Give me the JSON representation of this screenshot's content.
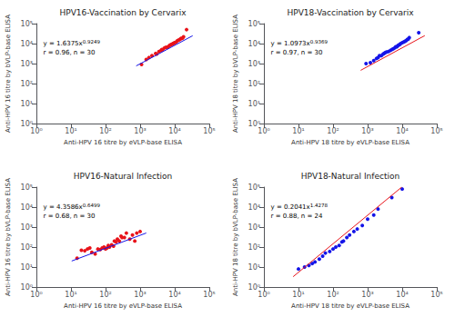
{
  "chart_data": [
    {
      "type": "scatter",
      "title": "HPV16-Vaccination by Cervarix",
      "xlabel": "Anti-HPV 16 titre by eVLP-base ELISA",
      "ylabel": "Anti-HPV 16 titre by bVLP-base ELISA",
      "log": true,
      "grid": false,
      "xlim": [
        1,
        100000
      ],
      "ylim": [
        1,
        100000
      ],
      "xticks": [
        {
          "value": 1,
          "label": "10⁰"
        },
        {
          "value": 10,
          "label": "10¹"
        },
        {
          "value": 100,
          "label": "10²"
        },
        {
          "value": 1000,
          "label": "10³"
        },
        {
          "value": 10000,
          "label": "10⁴"
        },
        {
          "value": 100000,
          "label": "10⁵"
        }
      ],
      "yticks": [
        {
          "value": 1,
          "label": "10⁰"
        },
        {
          "value": 10,
          "label": "10¹"
        },
        {
          "value": 100,
          "label": "10²"
        },
        {
          "value": 1000,
          "label": "10³"
        },
        {
          "value": 10000,
          "label": "10⁴"
        },
        {
          "value": 100000,
          "label": "10⁵"
        }
      ],
      "annotation": {
        "equation": "y = 1.6375x",
        "exponent": "0.9249",
        "stat": "r = 0.96, n = 30"
      },
      "series": [
        {
          "type": "scatter",
          "color": "#e8131a",
          "x": [
            1100,
            1500,
            1800,
            2200,
            2800,
            3000,
            3500,
            4000,
            4200,
            4500,
            5000,
            5500,
            6000,
            6500,
            7000,
            7500,
            8000,
            8500,
            9000,
            9500,
            10000,
            11000,
            12000,
            13000,
            14000,
            15000,
            16000,
            17000,
            18000,
            22000
          ],
          "values": [
            900,
            1600,
            2000,
            2500,
            3200,
            3000,
            4000,
            4500,
            5000,
            5000,
            6000,
            6500,
            6500,
            7000,
            8000,
            8500,
            9000,
            9500,
            10000,
            10500,
            11000,
            12000,
            14000,
            15000,
            16000,
            18000,
            18000,
            19000,
            22000,
            50000
          ]
        },
        {
          "type": "line",
          "color": "#1414e8",
          "x": [
            770,
            33000
          ],
          "values": [
            765.4,
            24737
          ]
        }
      ]
    },
    {
      "type": "scatter",
      "title": "HPV18-Vaccination by Cervarix",
      "xlabel": "Anti-HPV 18 titre by eVLP-base ELISA",
      "ylabel": "Anti-HPV 18 titre by bVLP-base ELISA",
      "log": true,
      "grid": false,
      "xlim": [
        1,
        100000
      ],
      "ylim": [
        1,
        100000
      ],
      "xticks": [
        {
          "value": 1,
          "label": "10⁰"
        },
        {
          "value": 10,
          "label": "10¹"
        },
        {
          "value": 100,
          "label": "10²"
        },
        {
          "value": 1000,
          "label": "10³"
        },
        {
          "value": 10000,
          "label": "10⁴"
        },
        {
          "value": 100000,
          "label": "10⁵"
        }
      ],
      "yticks": [
        {
          "value": 1,
          "label": "10⁰"
        },
        {
          "value": 10,
          "label": "10¹"
        },
        {
          "value": 100,
          "label": "10²"
        },
        {
          "value": 1000,
          "label": "10³"
        },
        {
          "value": 10000,
          "label": "10⁴"
        },
        {
          "value": 100000,
          "label": "10⁵"
        }
      ],
      "annotation": {
        "equation": "y = 1.0973x",
        "exponent": "0.9369",
        "stat": "r = 0.97, n = 30"
      },
      "series": [
        {
          "type": "scatter",
          "color": "#1414e8",
          "x": [
            900,
            1200,
            1500,
            1800,
            2000,
            2200,
            2500,
            2800,
            3000,
            3200,
            3500,
            4000,
            4500,
            5000,
            5500,
            6000,
            6500,
            7000,
            7500,
            8000,
            8500,
            9000,
            10000,
            11000,
            12000,
            13000,
            14000,
            15000,
            16000,
            30000
          ],
          "values": [
            1000,
            1100,
            1400,
            1800,
            2000,
            2500,
            2500,
            3000,
            3200,
            3500,
            3800,
            4000,
            4500,
            5000,
            5500,
            6000,
            7000,
            7000,
            8000,
            8500,
            9000,
            10000,
            11000,
            12000,
            13000,
            14000,
            16000,
            17000,
            20000,
            35000
          ]
        },
        {
          "type": "line",
          "color": "#e8131a",
          "x": [
            630,
            45000
          ],
          "values": [
            460.3,
            25114
          ]
        }
      ]
    },
    {
      "type": "scatter",
      "title": "HPV16-Natural Infection",
      "xlabel": "Anti-HPV 16 titre by eVLP-base ELISA",
      "ylabel": "Anti-HPV 16 titre by bVLP-base ELISA",
      "log": true,
      "grid": false,
      "xlim": [
        1,
        100000
      ],
      "ylim": [
        1,
        100000
      ],
      "xticks": [
        {
          "value": 1,
          "label": "10⁰"
        },
        {
          "value": 10,
          "label": "10¹"
        },
        {
          "value": 100,
          "label": "10²"
        },
        {
          "value": 1000,
          "label": "10³"
        },
        {
          "value": 10000,
          "label": "10⁴"
        },
        {
          "value": 100000,
          "label": "10⁵"
        }
      ],
      "yticks": [
        {
          "value": 1,
          "label": "10⁰"
        },
        {
          "value": 10,
          "label": "10¹"
        },
        {
          "value": 100,
          "label": "10²"
        },
        {
          "value": 1000,
          "label": "10³"
        },
        {
          "value": 10000,
          "label": "10⁴"
        },
        {
          "value": 100000,
          "label": "10⁵"
        }
      ],
      "annotation": {
        "equation": "y = 4.3586x",
        "exponent": "0.6499",
        "stat": "r = 0.68, n = 30"
      },
      "series": [
        {
          "type": "scatter",
          "color": "#e8131a",
          "x": [
            15,
            20,
            25,
            30,
            35,
            40,
            50,
            60,
            70,
            80,
            90,
            100,
            110,
            120,
            130,
            150,
            170,
            180,
            200,
            220,
            250,
            280,
            300,
            350,
            400,
            500,
            600,
            700,
            800,
            1000
          ],
          "values": [
            28,
            70,
            65,
            80,
            90,
            55,
            45,
            80,
            75,
            90,
            100,
            80,
            90,
            120,
            100,
            130,
            110,
            200,
            180,
            250,
            200,
            350,
            300,
            300,
            500,
            250,
            400,
            200,
            500,
            600
          ]
        },
        {
          "type": "line",
          "color": "#1414e8",
          "x": [
            10.5,
            1500
          ],
          "values": [
            20.09,
            505.2
          ]
        }
      ]
    },
    {
      "type": "scatter",
      "title": "HPV18-Natural Infection",
      "xlabel": "Anti-HPV 18 titre by eVLP-base ELISA",
      "ylabel": "Anti-HPV 18 titre by bVLP-base ELISA",
      "log": true,
      "grid": false,
      "xlim": [
        1,
        100000
      ],
      "ylim": [
        1,
        100000
      ],
      "xticks": [
        {
          "value": 1,
          "label": "10⁰"
        },
        {
          "value": 10,
          "label": "10¹"
        },
        {
          "value": 100,
          "label": "10²"
        },
        {
          "value": 1000,
          "label": "10³"
        },
        {
          "value": 10000,
          "label": "10⁴"
        },
        {
          "value": 100000,
          "label": "10⁵"
        }
      ],
      "yticks": [
        {
          "value": 1,
          "label": "10⁰"
        },
        {
          "value": 10,
          "label": "10¹"
        },
        {
          "value": 100,
          "label": "10²"
        },
        {
          "value": 1000,
          "label": "10³"
        },
        {
          "value": 10000,
          "label": "10⁴"
        },
        {
          "value": 100000,
          "label": "10⁵"
        }
      ],
      "annotation": {
        "equation": "y = 0.2041x",
        "exponent": "1.4278",
        "stat": "r = 0.88, n = 24"
      },
      "series": [
        {
          "type": "scatter",
          "color": "#1414e8",
          "x": [
            10,
            15,
            20,
            25,
            30,
            40,
            50,
            60,
            80,
            100,
            120,
            150,
            180,
            200,
            250,
            300,
            400,
            500,
            700,
            1000,
            1500,
            2000,
            5000,
            10000
          ],
          "values": [
            8,
            10,
            12,
            15,
            18,
            25,
            35,
            50,
            60,
            80,
            100,
            120,
            180,
            200,
            300,
            400,
            600,
            800,
            1200,
            2500,
            4000,
            8000,
            30000,
            80000
          ]
        },
        {
          "type": "line",
          "color": "#e8131a",
          "x": [
            7,
            9666
          ],
          "values": [
            3.285,
            100000
          ]
        }
      ]
    }
  ]
}
